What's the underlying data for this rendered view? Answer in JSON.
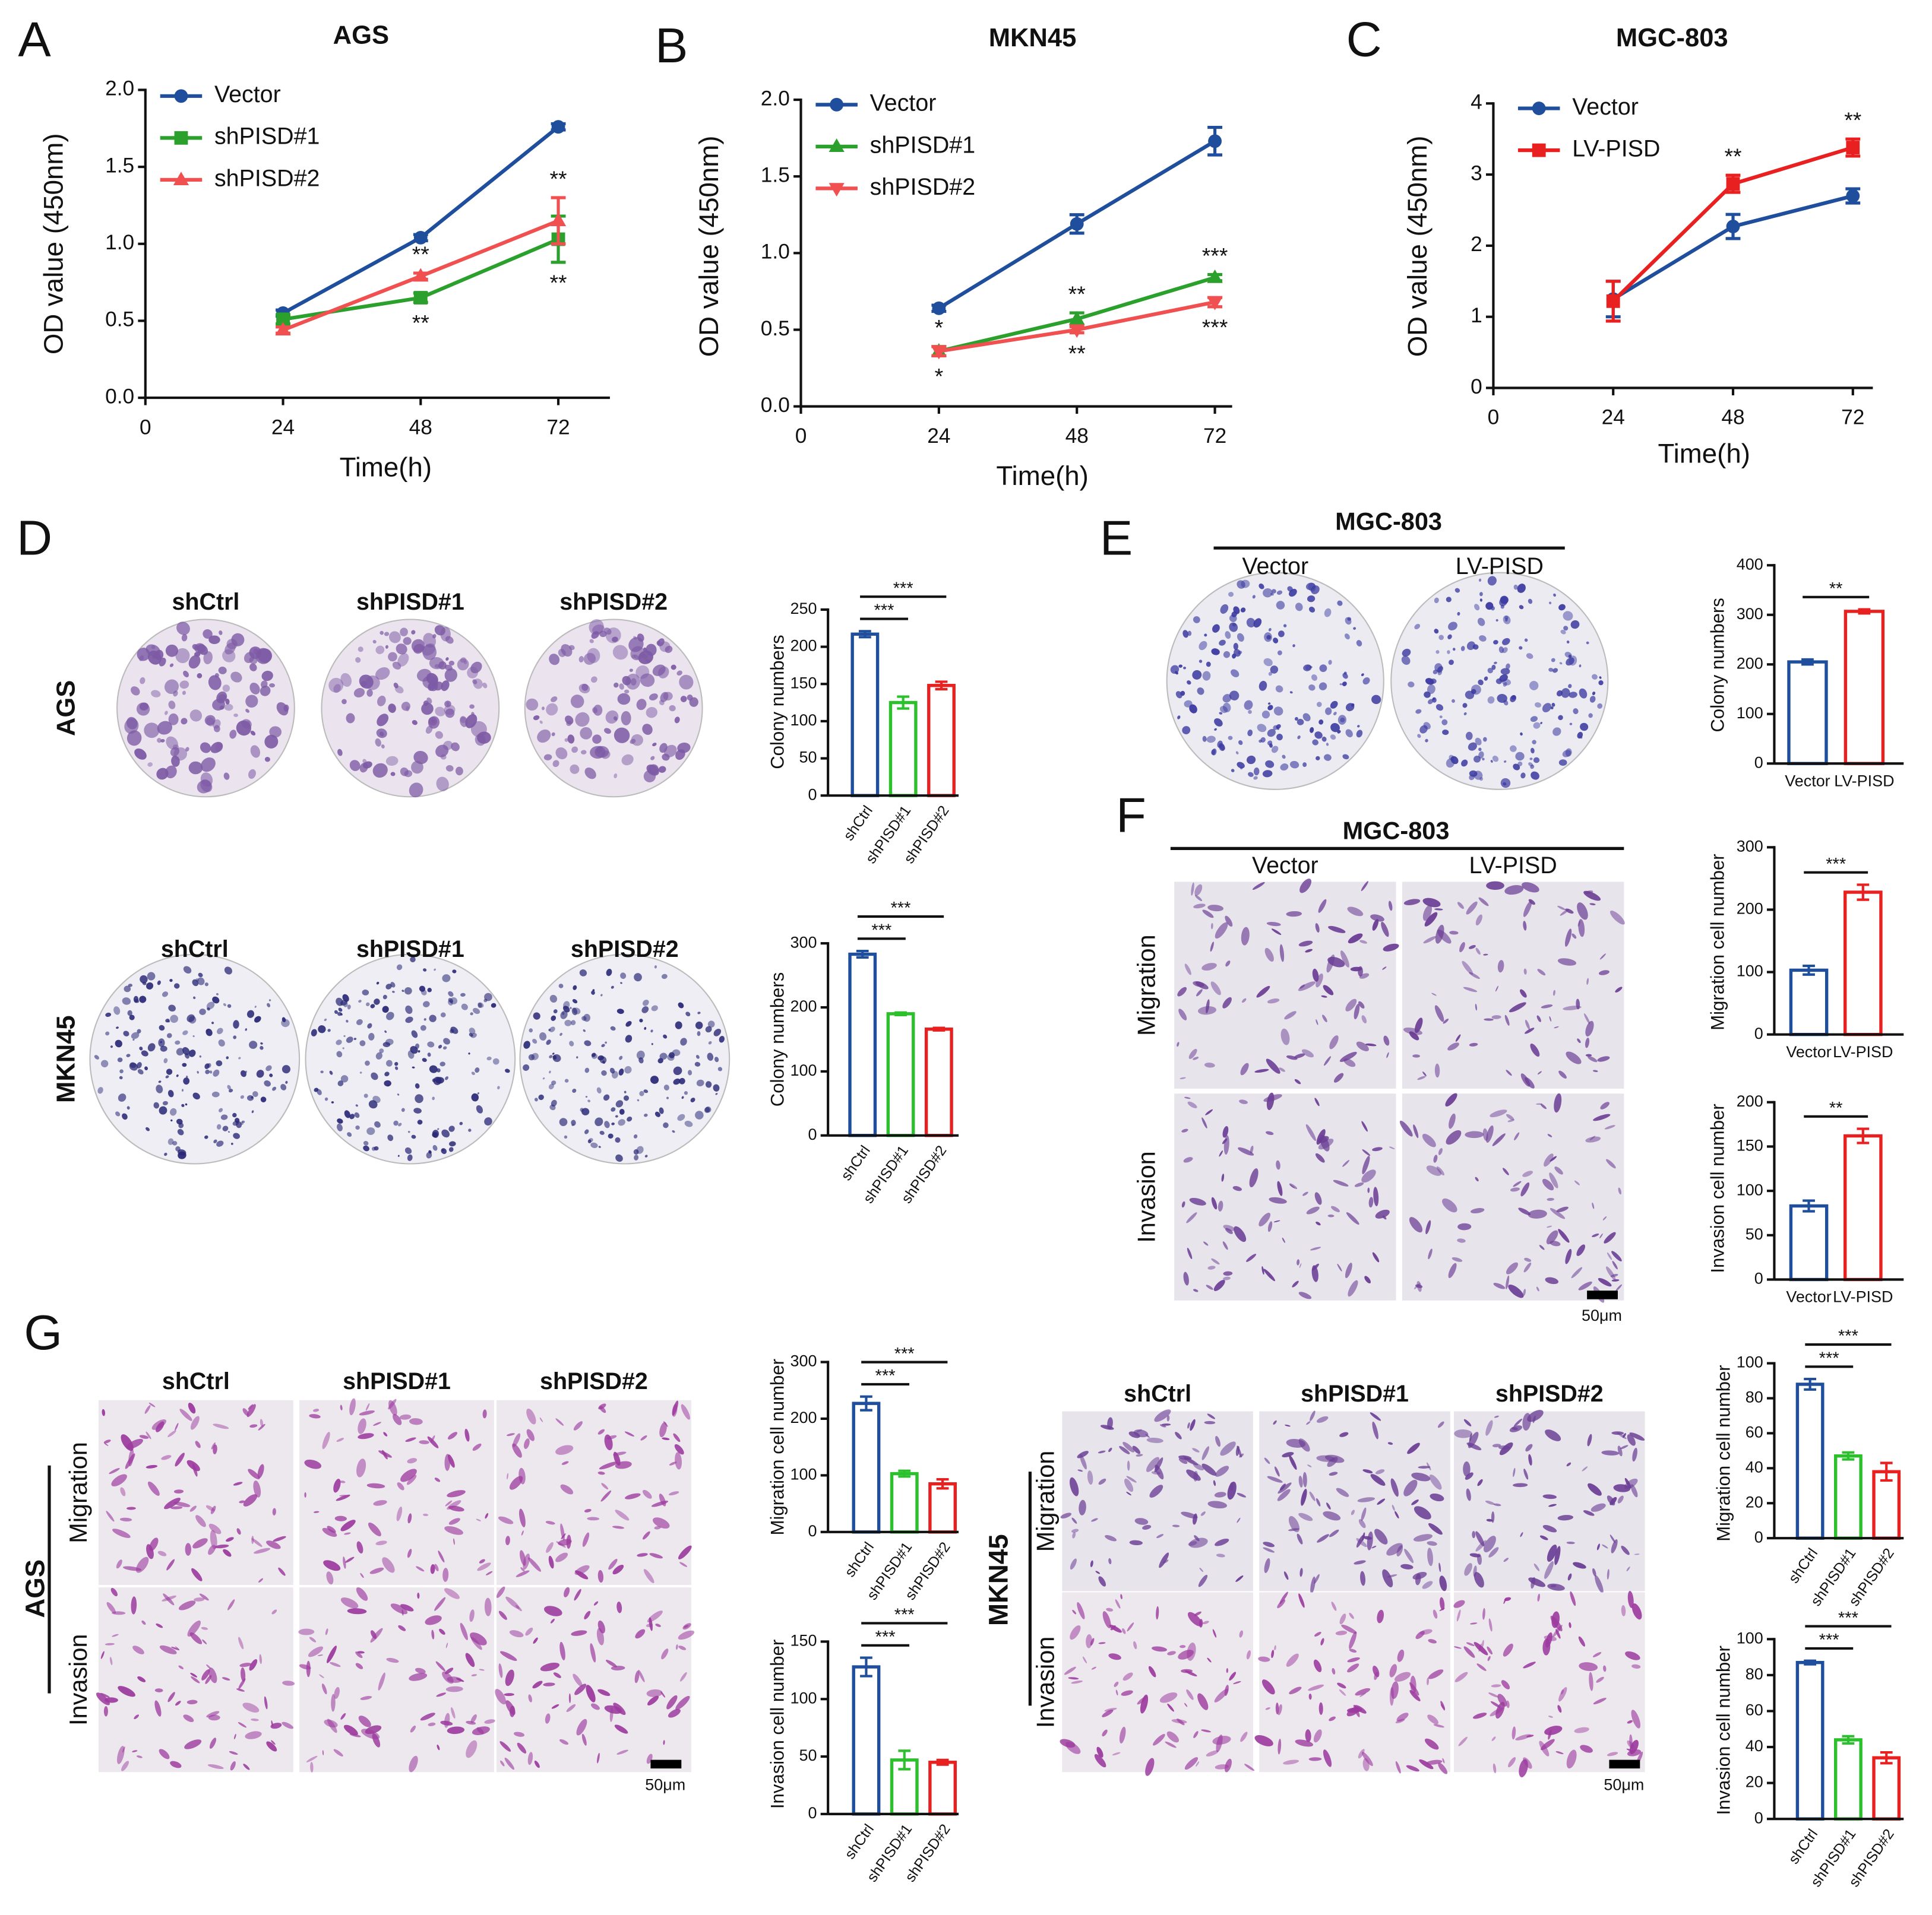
{
  "chart_data": [
    {
      "type": "line",
      "title": "AGS",
      "xlabel": "Time(h)",
      "ylabel": "OD value (450nm)",
      "x": [
        24,
        48,
        72
      ],
      "xlim": [
        0,
        81
      ],
      "xticks": [
        0,
        24,
        48,
        72
      ],
      "ylim": [
        0,
        2
      ],
      "yticks": [
        {
          "value": 0,
          "label": "0.0"
        },
        0.5,
        {
          "value": 1,
          "label": "1.0"
        },
        1.5,
        {
          "value": 2,
          "label": "2.0"
        }
      ],
      "legend": "upper left",
      "series": [
        {
          "name": "Vector",
          "color": "#1f4e9c",
          "marker": "o",
          "values": [
            0.55,
            1.04,
            1.76
          ],
          "errors": [
            0.02,
            0.02,
            0.02
          ],
          "significance": [
            null,
            null,
            null
          ]
        },
        {
          "name": "shPISD#1",
          "color": "#2ca02c",
          "marker": "s",
          "values": [
            0.51,
            0.65,
            1.03
          ],
          "errors": [
            0.03,
            0.03,
            0.15
          ],
          "significance": [
            null,
            "**",
            "**"
          ]
        },
        {
          "name": "shPISD#2",
          "color": "#f05050",
          "marker": "^",
          "values": [
            0.44,
            0.79,
            1.15
          ],
          "errors": [
            0.02,
            0.02,
            0.15
          ],
          "significance": [
            null,
            "**",
            "**"
          ]
        }
      ]
    },
    {
      "type": "line",
      "title": "MKN45",
      "xlabel": "Time(h)",
      "ylabel": "OD value (450nm)",
      "x": [
        24,
        48,
        72
      ],
      "xlim": [
        0,
        75
      ],
      "xticks": [
        0,
        24,
        48,
        72
      ],
      "ylim": [
        0,
        2
      ],
      "yticks": [
        {
          "value": 0,
          "label": "0.0"
        },
        0.5,
        {
          "value": 1,
          "label": "1.0"
        },
        1.5,
        {
          "value": 2,
          "label": "2.0"
        }
      ],
      "legend": "upper left",
      "series": [
        {
          "name": "Vector",
          "color": "#1f4e9c",
          "marker": "o",
          "values": [
            0.64,
            1.19,
            1.73
          ],
          "errors": [
            0.02,
            0.06,
            0.09
          ],
          "significance": [
            null,
            null,
            null
          ]
        },
        {
          "name": "shPISD#1",
          "color": "#2ca02c",
          "marker": "^",
          "values": [
            0.36,
            0.57,
            0.84
          ],
          "errors": [
            0.03,
            0.04,
            0.02
          ],
          "significance": [
            "*",
            "**",
            "***"
          ]
        },
        {
          "name": "shPISD#2",
          "color": "#f05050",
          "marker": "v",
          "values": [
            0.36,
            0.5,
            0.68
          ],
          "errors": [
            0.03,
            0.02,
            0.03
          ],
          "significance": [
            "*",
            "**",
            "***"
          ]
        }
      ]
    },
    {
      "type": "line",
      "title": "MGC-803",
      "xlabel": "Time(h)",
      "ylabel": "OD value (450nm)",
      "x": [
        24,
        48,
        72
      ],
      "xlim": [
        0,
        76
      ],
      "xticks": [
        0,
        24,
        48,
        72
      ],
      "ylim": [
        0,
        4
      ],
      "yticks": [
        0,
        1,
        2,
        3,
        4
      ],
      "legend": "upper left",
      "series": [
        {
          "name": "Vector",
          "color": "#1f4e9c",
          "marker": "o",
          "values": [
            1.25,
            2.27,
            2.7
          ],
          "errors": [
            0.25,
            0.17,
            0.1
          ],
          "significance": [
            null,
            null,
            null
          ]
        },
        {
          "name": "LV-PISD",
          "color": "#e82020",
          "marker": "s",
          "values": [
            1.22,
            2.87,
            3.38
          ],
          "errors": [
            0.28,
            0.12,
            0.12
          ],
          "significance": [
            null,
            "**",
            "**"
          ]
        }
      ]
    },
    {
      "type": "bar",
      "ylabel": "Colony numbers",
      "categories": [
        "shCtrl",
        "shPISD#1",
        "shPISD#2"
      ],
      "values": [
        217,
        125,
        148
      ],
      "errors": [
        4,
        8,
        5
      ],
      "colors": [
        "#1f4e9c",
        "#2cc02c",
        "#e82020"
      ],
      "ylim": [
        0,
        250
      ],
      "yticks": [
        0,
        50,
        100,
        150,
        200,
        250
      ],
      "comparisons": [
        {
          "pair": [
            0,
            1
          ],
          "label": "***"
        },
        {
          "pair": [
            0,
            2
          ],
          "label": "***"
        }
      ]
    },
    {
      "type": "bar",
      "ylabel": "Colony numbers",
      "categories": [
        "shCtrl",
        "shPISD#1",
        "shPISD#2"
      ],
      "values": [
        283,
        190,
        166
      ],
      "errors": [
        5,
        2,
        2
      ],
      "colors": [
        "#1f4e9c",
        "#2cc02c",
        "#e82020"
      ],
      "ylim": [
        0,
        300
      ],
      "yticks": [
        0,
        100,
        200,
        300
      ],
      "comparisons": [
        {
          "pair": [
            0,
            1
          ],
          "label": "***"
        },
        {
          "pair": [
            0,
            2
          ],
          "label": "***"
        }
      ]
    },
    {
      "type": "bar",
      "ylabel": "Colony numbers",
      "categories": [
        "Vector",
        "LV-PISD"
      ],
      "values": [
        205,
        307
      ],
      "errors": [
        5,
        4
      ],
      "colors": [
        "#1f4e9c",
        "#e82020"
      ],
      "ylim": [
        0,
        400
      ],
      "yticks": [
        0,
        100,
        200,
        300,
        400
      ],
      "comparisons": [
        {
          "pair": [
            0,
            1
          ],
          "label": "**"
        }
      ]
    },
    {
      "type": "bar",
      "ylabel": "Migration cell number",
      "categories": [
        "Vector",
        "LV-PISD"
      ],
      "values": [
        103,
        228
      ],
      "errors": [
        7,
        12
      ],
      "colors": [
        "#1f4e9c",
        "#e82020"
      ],
      "ylim": [
        0,
        300
      ],
      "yticks": [
        0,
        100,
        200,
        300
      ],
      "comparisons": [
        {
          "pair": [
            0,
            1
          ],
          "label": "***"
        }
      ]
    },
    {
      "type": "bar",
      "ylabel": "Invasion cell number",
      "categories": [
        "Vector",
        "LV-PISD"
      ],
      "values": [
        83,
        162
      ],
      "errors": [
        6,
        8
      ],
      "colors": [
        "#1f4e9c",
        "#e82020"
      ],
      "ylim": [
        0,
        200
      ],
      "yticks": [
        0,
        50,
        100,
        150,
        200
      ],
      "comparisons": [
        {
          "pair": [
            0,
            1
          ],
          "label": "**"
        }
      ]
    },
    {
      "type": "bar",
      "ylabel": "Migration cell number",
      "categories": [
        "shCtrl",
        "shPISD#1",
        "shPISD#2"
      ],
      "values": [
        227,
        103,
        85
      ],
      "errors": [
        12,
        5,
        8
      ],
      "colors": [
        "#1f4e9c",
        "#2cc02c",
        "#e82020"
      ],
      "ylim": [
        0,
        300
      ],
      "yticks": [
        0,
        100,
        200,
        300
      ],
      "comparisons": [
        {
          "pair": [
            0,
            1
          ],
          "label": "***"
        },
        {
          "pair": [
            0,
            2
          ],
          "label": "***"
        }
      ]
    },
    {
      "type": "bar",
      "ylabel": "Invasion cell number",
      "categories": [
        "shCtrl",
        "shPISD#1",
        "shPISD#2"
      ],
      "values": [
        128,
        47,
        45
      ],
      "errors": [
        8,
        8,
        2
      ],
      "colors": [
        "#1f4e9c",
        "#2cc02c",
        "#e82020"
      ],
      "ylim": [
        0,
        150
      ],
      "yticks": [
        0,
        50,
        100,
        150
      ],
      "comparisons": [
        {
          "pair": [
            0,
            1
          ],
          "label": "***"
        },
        {
          "pair": [
            0,
            2
          ],
          "label": "***"
        }
      ]
    },
    {
      "type": "bar",
      "ylabel": "Migration cell number",
      "categories": [
        "shCtrl",
        "shPISD#1",
        "shPISD#2"
      ],
      "values": [
        88,
        47,
        38
      ],
      "errors": [
        3,
        2,
        5
      ],
      "colors": [
        "#1f4e9c",
        "#2cc02c",
        "#e82020"
      ],
      "ylim": [
        0,
        100
      ],
      "yticks": [
        0,
        20,
        40,
        60,
        80,
        100
      ],
      "comparisons": [
        {
          "pair": [
            0,
            1
          ],
          "label": "***"
        },
        {
          "pair": [
            0,
            2
          ],
          "label": "***"
        }
      ]
    },
    {
      "type": "bar",
      "ylabel": "Invasion cell number",
      "categories": [
        "shCtrl",
        "shPISD#1",
        "shPISD#2"
      ],
      "values": [
        87,
        44,
        34
      ],
      "errors": [
        1,
        2,
        3
      ],
      "colors": [
        "#1f4e9c",
        "#2cc02c",
        "#e82020"
      ],
      "ylim": [
        0,
        100
      ],
      "yticks": [
        0,
        20,
        40,
        60,
        80,
        100
      ],
      "comparisons": [
        {
          "pair": [
            0,
            1
          ],
          "label": "***"
        },
        {
          "pair": [
            0,
            2
          ],
          "label": "***"
        }
      ]
    }
  ],
  "figure": {
    "panel_labels": [
      "A",
      "B",
      "C",
      "D",
      "E",
      "F",
      "G"
    ],
    "image_groups": [
      {
        "columns": [
          "shCtrl",
          "shPISD#1",
          "shPISD#2"
        ],
        "rows": [
          "AGS"
        ]
      },
      {
        "columns": [
          "shCtrl",
          "shPISD#1",
          "shPISD#2"
        ],
        "rows": [
          "MKN45"
        ]
      },
      {
        "title": "MGC-803",
        "columns": [
          "Vector",
          "LV-PISD"
        ]
      },
      {
        "title": "MGC-803",
        "columns": [
          "Vector",
          "LV-PISD"
        ],
        "rows": [
          "Migration",
          "Invasion"
        ],
        "scale_bar": "50μm"
      },
      {
        "group": "AGS",
        "columns": [
          "shCtrl",
          "shPISD#1",
          "shPISD#2"
        ],
        "rows": [
          "Migration",
          "Invasion"
        ],
        "scale_bar": "50μm"
      },
      {
        "group": "MKN45",
        "columns": [
          "shCtrl",
          "shPISD#1",
          "shPISD#2"
        ],
        "rows": [
          "Migration",
          "Invasion"
        ],
        "scale_bar": "50μm"
      }
    ]
  }
}
